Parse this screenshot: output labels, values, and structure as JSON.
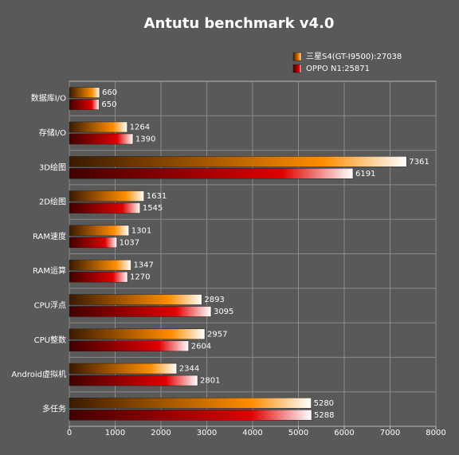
{
  "chart_data": {
    "type": "hbar",
    "title": "Antutu benchmark v4.0",
    "categories": [
      "数据库I/O",
      "存储I/O",
      "3D绘图",
      "2D绘图",
      "RAM速度",
      "RAM运算",
      "CPU浮点",
      "CPU整数",
      "Android虚拟机",
      "多任务"
    ],
    "series": [
      {
        "name": "三星S4(GT-I9500):27038",
        "color": "#ff8c00",
        "values": [
          660,
          1264,
          7361,
          1631,
          1301,
          1347,
          2893,
          2957,
          2344,
          5280
        ]
      },
      {
        "name": "OPPO N1:25871",
        "color": "#e00000",
        "values": [
          650,
          1390,
          6191,
          1545,
          1037,
          1270,
          3095,
          2604,
          2801,
          5288
        ]
      }
    ],
    "xlim": [
      0,
      8000
    ],
    "xticks": [
      0,
      1000,
      2000,
      3000,
      4000,
      5000,
      6000,
      7000,
      8000
    ],
    "grid": true
  }
}
